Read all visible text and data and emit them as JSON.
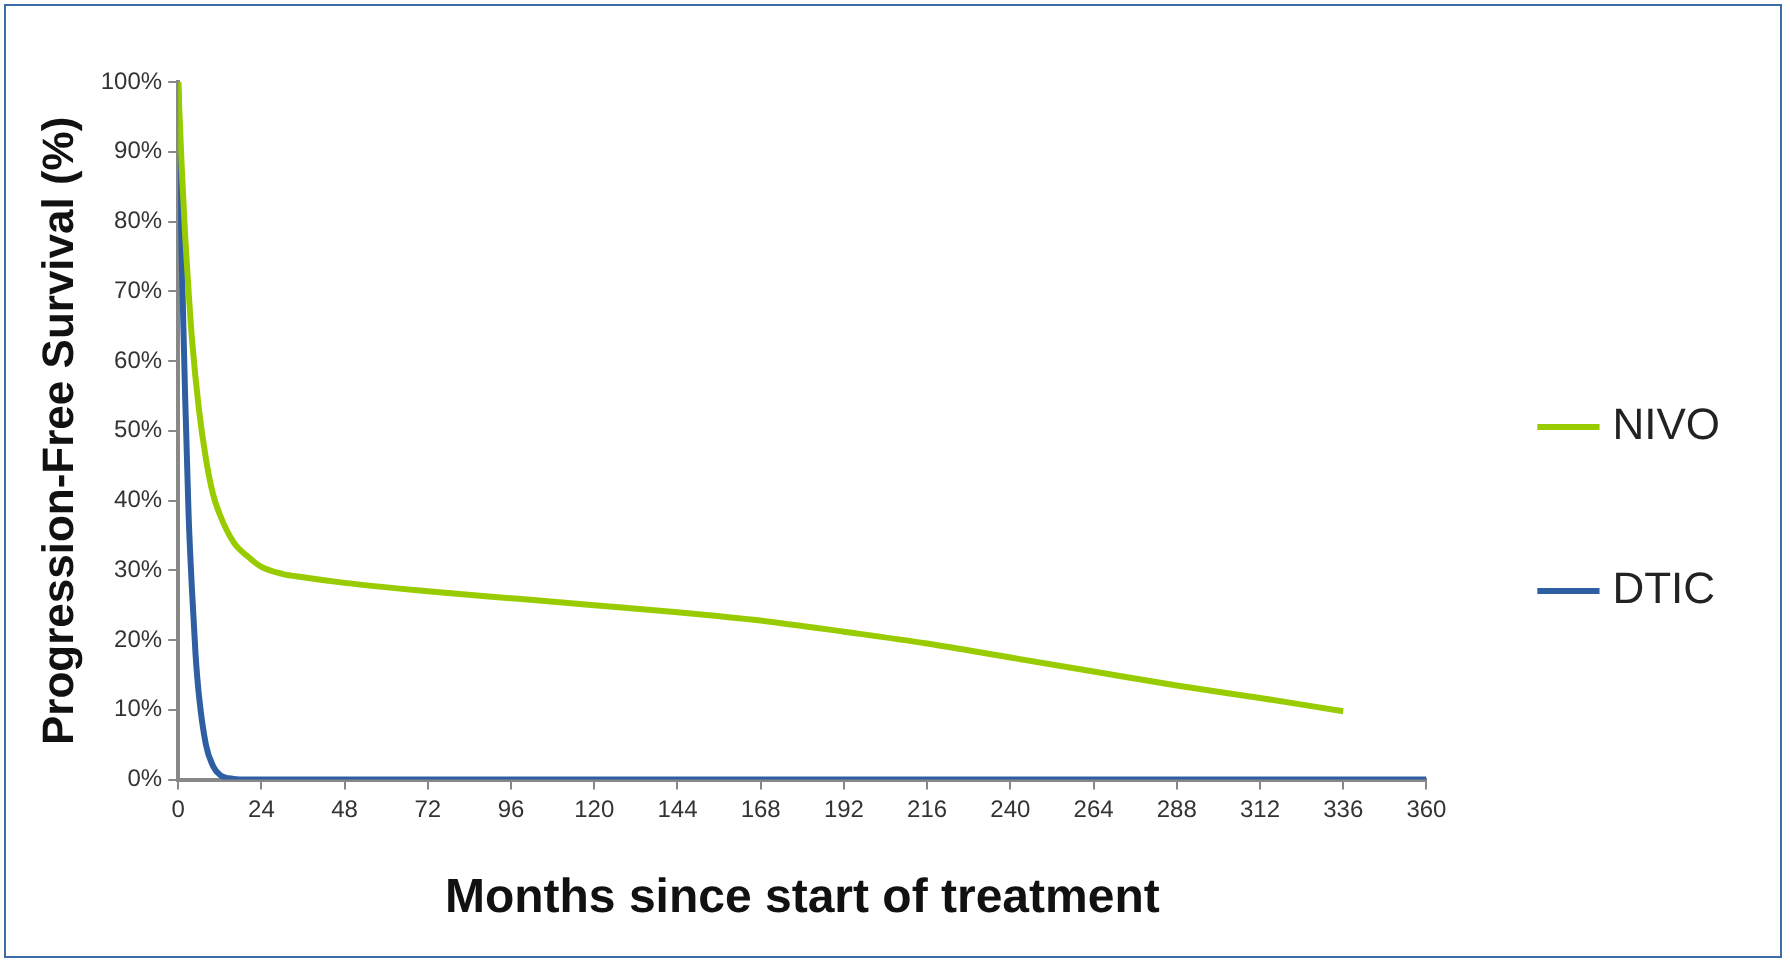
{
  "chart_data": {
    "type": "line",
    "xlabel": "Months since start of treatment",
    "ylabel": "Progression-Free Survival (%)",
    "xlim": [
      0,
      360
    ],
    "xticks": [
      0,
      24,
      48,
      72,
      96,
      120,
      144,
      168,
      192,
      216,
      240,
      264,
      288,
      312,
      336,
      360
    ],
    "ylim": [
      0,
      100
    ],
    "yticks": [
      {
        "value": 0,
        "label": "0%"
      },
      {
        "value": 10,
        "label": "10%"
      },
      {
        "value": 20,
        "label": "20%"
      },
      {
        "value": 30,
        "label": "30%"
      },
      {
        "value": 40,
        "label": "40%"
      },
      {
        "value": 50,
        "label": "50%"
      },
      {
        "value": 60,
        "label": "60%"
      },
      {
        "value": 70,
        "label": "70%"
      },
      {
        "value": 80,
        "label": "80%"
      },
      {
        "value": 90,
        "label": "90%"
      },
      {
        "value": 100,
        "label": "100%"
      }
    ],
    "grid": false,
    "legend": "right",
    "marker": "none",
    "line_style": "solid",
    "series": [
      {
        "name": "NIVO",
        "color": "#99cc00",
        "x": [
          0,
          1,
          2,
          3,
          4,
          6,
          8,
          10,
          12,
          16,
          20,
          24,
          30,
          36,
          48,
          72,
          96,
          120,
          144,
          168,
          192,
          216,
          240,
          264,
          288,
          312,
          336
        ],
        "values": [
          100,
          88,
          78,
          70,
          63,
          53,
          46,
          41,
          38,
          34,
          32,
          30.5,
          29.5,
          29,
          28.2,
          27,
          26,
          25,
          24,
          22.8,
          21.2,
          19.5,
          17.5,
          15.5,
          13.5,
          11.7,
          9.8
        ]
      },
      {
        "name": "DTIC",
        "color": "#2e5fa3",
        "x": [
          0,
          1,
          2,
          3,
          4,
          5,
          6,
          8,
          10,
          12,
          16,
          20,
          360
        ],
        "values": [
          100,
          75,
          55,
          38,
          27,
          18,
          12,
          5,
          2,
          0.7,
          0.1,
          0,
          0
        ]
      }
    ]
  }
}
